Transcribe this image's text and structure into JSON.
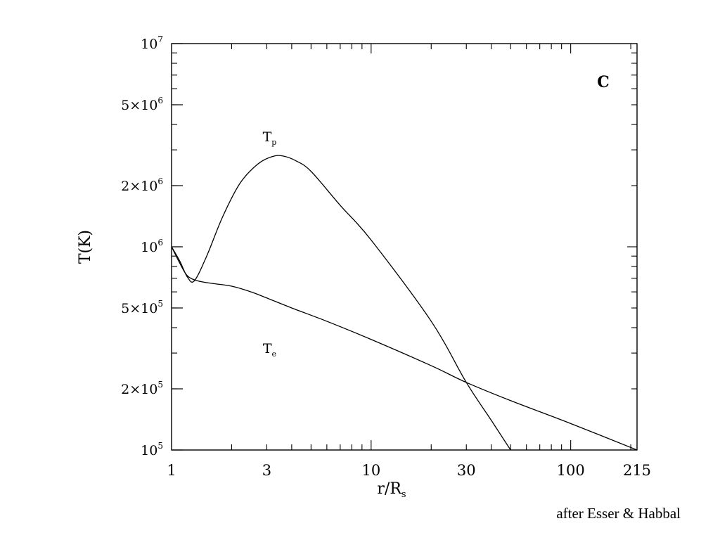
{
  "chart_data": {
    "type": "line",
    "panel_label": "C",
    "xlabel": "r/R",
    "xlabel_sub": "s",
    "ylabel": "T(K)",
    "x_scale": "log",
    "y_scale": "log",
    "xlim": [
      1,
      215
    ],
    "ylim": [
      100000,
      10000000
    ],
    "x_ticks": [
      {
        "value": 1,
        "label": "1"
      },
      {
        "value": 3,
        "label": "3"
      },
      {
        "value": 10,
        "label": "10"
      },
      {
        "value": 30,
        "label": "30"
      },
      {
        "value": 100,
        "label": "100"
      },
      {
        "value": 215,
        "label": "215"
      }
    ],
    "y_ticks": [
      {
        "value": 100000,
        "mant": "",
        "base": "10",
        "exp": "5"
      },
      {
        "value": 200000,
        "mant": "2×",
        "base": "10",
        "exp": "5"
      },
      {
        "value": 500000,
        "mant": "5×",
        "base": "10",
        "exp": "5"
      },
      {
        "value": 1000000,
        "mant": "",
        "base": "10",
        "exp": "6"
      },
      {
        "value": 2000000,
        "mant": "2×",
        "base": "10",
        "exp": "6"
      },
      {
        "value": 5000000,
        "mant": "5×",
        "base": "10",
        "exp": "6"
      },
      {
        "value": 10000000,
        "mant": "",
        "base": "10",
        "exp": "7"
      }
    ],
    "series": [
      {
        "name": "T",
        "name_sub": "p",
        "label_at": {
          "x": 3.1,
          "y": 3300000
        },
        "points": [
          [
            1.0,
            1000000
          ],
          [
            1.1,
            850000
          ],
          [
            1.2,
            710000
          ],
          [
            1.3,
            680000
          ],
          [
            1.5,
            900000
          ],
          [
            1.8,
            1400000
          ],
          [
            2.2,
            2050000
          ],
          [
            2.7,
            2550000
          ],
          [
            3.2,
            2780000
          ],
          [
            3.6,
            2800000
          ],
          [
            4.2,
            2650000
          ],
          [
            5.0,
            2350000
          ],
          [
            7.0,
            1600000
          ],
          [
            10.0,
            1080000
          ],
          [
            20.0,
            430000
          ],
          [
            30.0,
            215000
          ],
          [
            40.0,
            140000
          ],
          [
            50.0,
            100000
          ]
        ]
      },
      {
        "name": "T",
        "name_sub": "e",
        "label_at": {
          "x": 3.1,
          "y": 300000
        },
        "points": [
          [
            1.0,
            1000000
          ],
          [
            1.1,
            830000
          ],
          [
            1.2,
            720000
          ],
          [
            1.35,
            680000
          ],
          [
            1.6,
            660000
          ],
          [
            2.0,
            640000
          ],
          [
            2.5,
            600000
          ],
          [
            3.0,
            560000
          ],
          [
            4.0,
            500000
          ],
          [
            6.0,
            430000
          ],
          [
            10.0,
            350000
          ],
          [
            20.0,
            260000
          ],
          [
            30.0,
            215000
          ],
          [
            50.0,
            175000
          ],
          [
            100.0,
            135000
          ],
          [
            215.0,
            100000
          ]
        ]
      }
    ]
  },
  "credit": "after Esser & Habbal"
}
